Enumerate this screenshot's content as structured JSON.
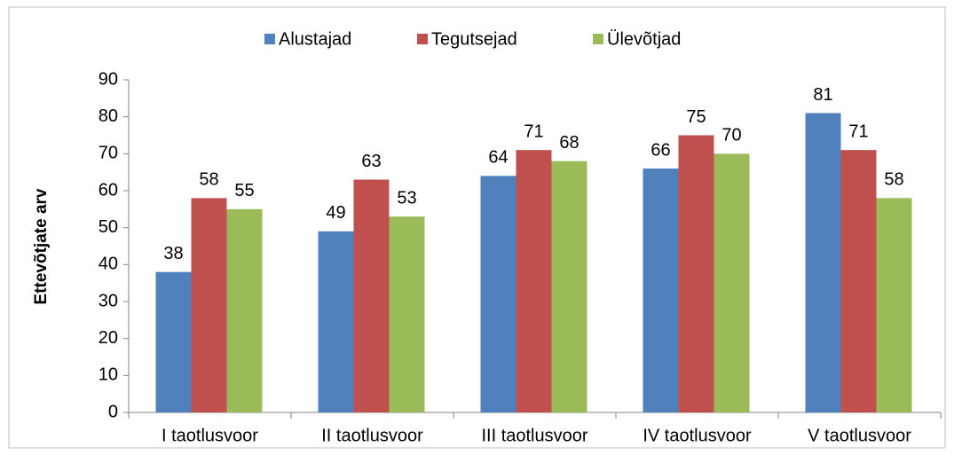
{
  "chart_data": {
    "type": "bar",
    "y_label": "Ettevõtjate arv",
    "categories": [
      "I taotlusvoor",
      "II taotlusvoor",
      "III taotlusvoor",
      "IV taotlusvoor",
      "V taotlusvoor"
    ],
    "series": [
      {
        "name": "Alustajad",
        "color": "#4f81bd",
        "values": [
          38,
          49,
          64,
          66,
          81
        ]
      },
      {
        "name": "Tegutsejad",
        "color": "#c0504d",
        "values": [
          58,
          63,
          71,
          75,
          71
        ]
      },
      {
        "name": "Ülevõtjad",
        "color": "#9bbb59",
        "values": [
          55,
          53,
          68,
          70,
          58
        ]
      }
    ],
    "ylim": [
      0,
      90
    ],
    "yticks": [
      0,
      10,
      20,
      30,
      40,
      50,
      60,
      70,
      80,
      90
    ],
    "grid": false,
    "legend": "top"
  }
}
